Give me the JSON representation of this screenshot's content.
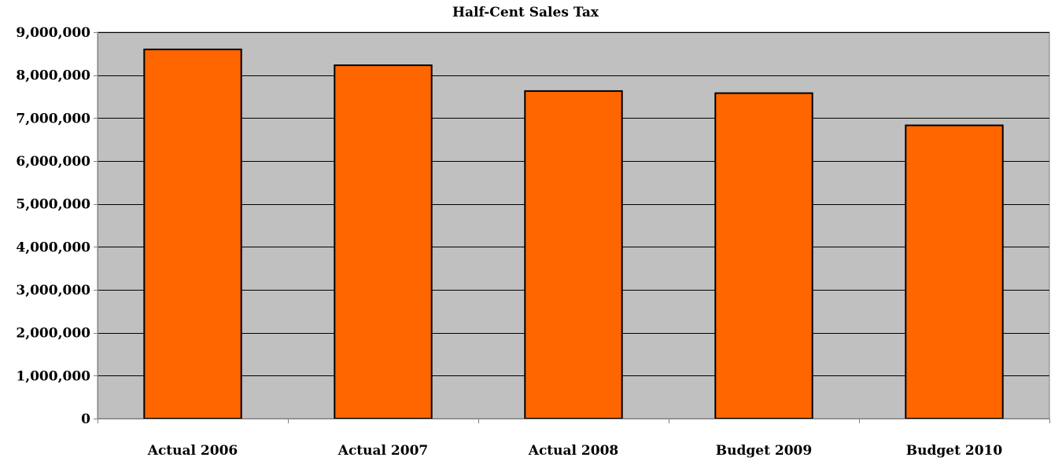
{
  "chart_data": {
    "type": "bar",
    "title": "Half-Cent Sales Tax",
    "xlabel": "",
    "ylabel": "",
    "categories": [
      "Actual 2006",
      "Actual 2007",
      "Actual 2008",
      "Budget 2009",
      "Budget 2010"
    ],
    "values": [
      8600000,
      8230000,
      7630000,
      7580000,
      6830000
    ],
    "ylim": [
      0,
      9000000
    ],
    "yticks": [
      0,
      1000000,
      2000000,
      3000000,
      4000000,
      5000000,
      6000000,
      7000000,
      8000000,
      9000000
    ],
    "ytick_labels": [
      "0",
      "1,000,000",
      "2,000,000",
      "3,000,000",
      "4,000,000",
      "5,000,000",
      "6,000,000",
      "7,000,000",
      "8,000,000",
      "9,000,000"
    ],
    "grid": true,
    "legend": "none"
  },
  "colors": {
    "bar_fill": "#ff6600",
    "bar_stroke": "#000000",
    "plot_background": "#c0c0c0",
    "gridline": "#000000"
  }
}
